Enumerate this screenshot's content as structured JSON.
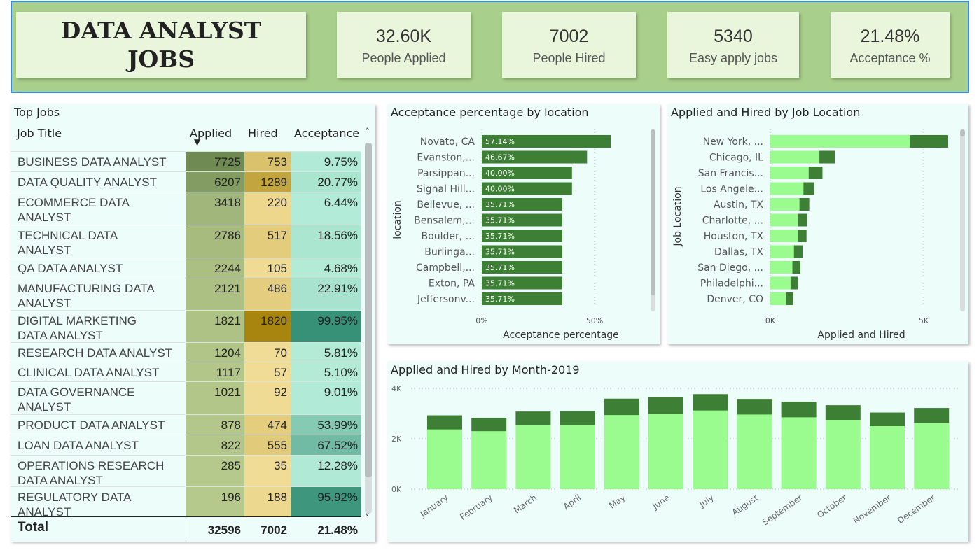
{
  "title": {
    "line1": "DATA ANALYST",
    "line2": "JOBS"
  },
  "kpis": [
    {
      "value": "32.60K",
      "label": "People Applied"
    },
    {
      "value": "7002",
      "label": "People Hired"
    },
    {
      "value": "5340",
      "label": "Easy apply jobs"
    },
    {
      "value": "21.48%",
      "label": "Acceptance %"
    }
  ],
  "top_jobs": {
    "title": "Top Jobs",
    "headers": [
      "Job Title",
      "Applied",
      "Hired",
      "Acceptance"
    ],
    "sort_indicator": "▼",
    "rows": [
      {
        "title": [
          "BUSINESS DATA ANALYST"
        ],
        "applied": 7725,
        "hired": 753,
        "acceptance": "9.75%",
        "acceptance_value": 9.75
      },
      {
        "title": [
          "DATA QUALITY ANALYST"
        ],
        "applied": 6207,
        "hired": 1289,
        "acceptance": "20.77%",
        "acceptance_value": 20.77
      },
      {
        "title": [
          "ECOMMERCE DATA",
          "ANALYST"
        ],
        "applied": 3418,
        "hired": 220,
        "acceptance": "6.44%",
        "acceptance_value": 6.44
      },
      {
        "title": [
          "TECHNICAL DATA",
          "ANALYST"
        ],
        "applied": 2786,
        "hired": 517,
        "acceptance": "18.56%",
        "acceptance_value": 18.56
      },
      {
        "title": [
          "QA DATA ANALYST"
        ],
        "applied": 2244,
        "hired": 105,
        "acceptance": "4.68%",
        "acceptance_value": 4.68
      },
      {
        "title": [
          "MANUFACTURING DATA",
          "ANALYST"
        ],
        "applied": 2121,
        "hired": 486,
        "acceptance": "22.91%",
        "acceptance_value": 22.91
      },
      {
        "title": [
          "DIGITAL MARKETING",
          "DATA ANALYST"
        ],
        "applied": 1821,
        "hired": 1820,
        "acceptance": "99.95%",
        "acceptance_value": 99.95
      },
      {
        "title": [
          "RESEARCH DATA ANALYST"
        ],
        "applied": 1204,
        "hired": 70,
        "acceptance": "5.81%",
        "acceptance_value": 5.81
      },
      {
        "title": [
          "CLINICAL DATA ANALYST"
        ],
        "applied": 1117,
        "hired": 57,
        "acceptance": "5.10%",
        "acceptance_value": 5.1
      },
      {
        "title": [
          "DATA GOVERNANCE",
          "ANALYST"
        ],
        "applied": 1021,
        "hired": 92,
        "acceptance": "9.01%",
        "acceptance_value": 9.01
      },
      {
        "title": [
          "PRODUCT DATA ANALYST"
        ],
        "applied": 878,
        "hired": 474,
        "acceptance": "53.99%",
        "acceptance_value": 53.99
      },
      {
        "title": [
          "LOAN DATA ANALYST"
        ],
        "applied": 822,
        "hired": 555,
        "acceptance": "67.52%",
        "acceptance_value": 67.52
      },
      {
        "title": [
          "OPERATIONS RESEARCH",
          "DATA ANALYST"
        ],
        "applied": 285,
        "hired": 35,
        "acceptance": "12.28%",
        "acceptance_value": 12.28
      },
      {
        "title": [
          "REGULATORY DATA",
          "ANALYST"
        ],
        "applied": 196,
        "hired": 188,
        "acceptance": "95.92%",
        "acceptance_value": 95.92
      }
    ],
    "total": {
      "label": "Total",
      "applied": "32596",
      "hired": "7002",
      "acceptance": "21.48%"
    },
    "scroll_up": "˄",
    "scroll_down": "˅"
  },
  "chart_data": [
    {
      "type": "bar",
      "orientation": "horizontal",
      "title": "Acceptance percentage by location",
      "xlabel": "Acceptance percentage",
      "ylabel": "location",
      "categories": [
        "Novato, CA",
        "Evanston,...",
        "Parsippan...",
        "Signal Hill...",
        "Bellevue, ...",
        "Bensalem,...",
        "Boulder, ...",
        "Burlinga...",
        "Campbell,...",
        "Exton, PA",
        "Jeffersonv..."
      ],
      "values": [
        57.14,
        46.67,
        40.0,
        40.0,
        35.71,
        35.71,
        35.71,
        35.71,
        35.71,
        35.71,
        35.71
      ],
      "data_labels": [
        "57.14%",
        "46.67%",
        "40.00%",
        "40.00%",
        "35.71%",
        "35.71%",
        "35.71%",
        "35.71%",
        "35.71%",
        "35.71%",
        "35.71%"
      ],
      "xlim": [
        0,
        60
      ],
      "xticks": [
        0,
        50
      ],
      "xtick_labels": [
        "0%",
        "50%"
      ],
      "color": "#3d7f35"
    },
    {
      "type": "bar",
      "orientation": "horizontal",
      "stacked": true,
      "title": "Applied and Hired by Job Location",
      "xlabel": "Applied and Hired",
      "ylabel": "Job Location",
      "categories": [
        "New York, ...",
        "Chicago, IL",
        "San Francis...",
        "Los Angele...",
        "Austin, TX",
        "Charlotte, ...",
        "Houston, TX",
        "Dallas, TX",
        "San Diego, ...",
        "Philadelphi...",
        "Denver, CO"
      ],
      "series": [
        {
          "values": [
            4550,
            1600,
            1250,
            1080,
            950,
            900,
            900,
            770,
            720,
            660,
            520
          ],
          "color": "#9afb8e"
        },
        {
          "values": [
            1250,
            500,
            450,
            350,
            320,
            300,
            280,
            280,
            260,
            230,
            220
          ],
          "color": "#3d7f35"
        }
      ],
      "xlim": [
        0,
        7500
      ],
      "xticks": [
        0,
        5000
      ],
      "xtick_labels": [
        "0K",
        "5K"
      ]
    },
    {
      "type": "bar",
      "stacked": true,
      "title": "Applied and Hired by Month-2019",
      "categories": [
        "January",
        "February",
        "March",
        "April",
        "May",
        "June",
        "July",
        "August",
        "September",
        "October",
        "November",
        "December"
      ],
      "series": [
        {
          "values": [
            2370,
            2300,
            2530,
            2540,
            2940,
            2980,
            3120,
            2960,
            2850,
            2750,
            2500,
            2630
          ],
          "color": "#9afb8e"
        },
        {
          "values": [
            560,
            530,
            550,
            560,
            650,
            660,
            650,
            620,
            620,
            580,
            540,
            590
          ],
          "color": "#3d7f35"
        }
      ],
      "ylim": [
        0,
        4000
      ],
      "yticks": [
        0,
        2000,
        4000
      ],
      "ytick_labels": [
        "0K",
        "2K",
        "4K"
      ],
      "gridlines": true
    }
  ]
}
